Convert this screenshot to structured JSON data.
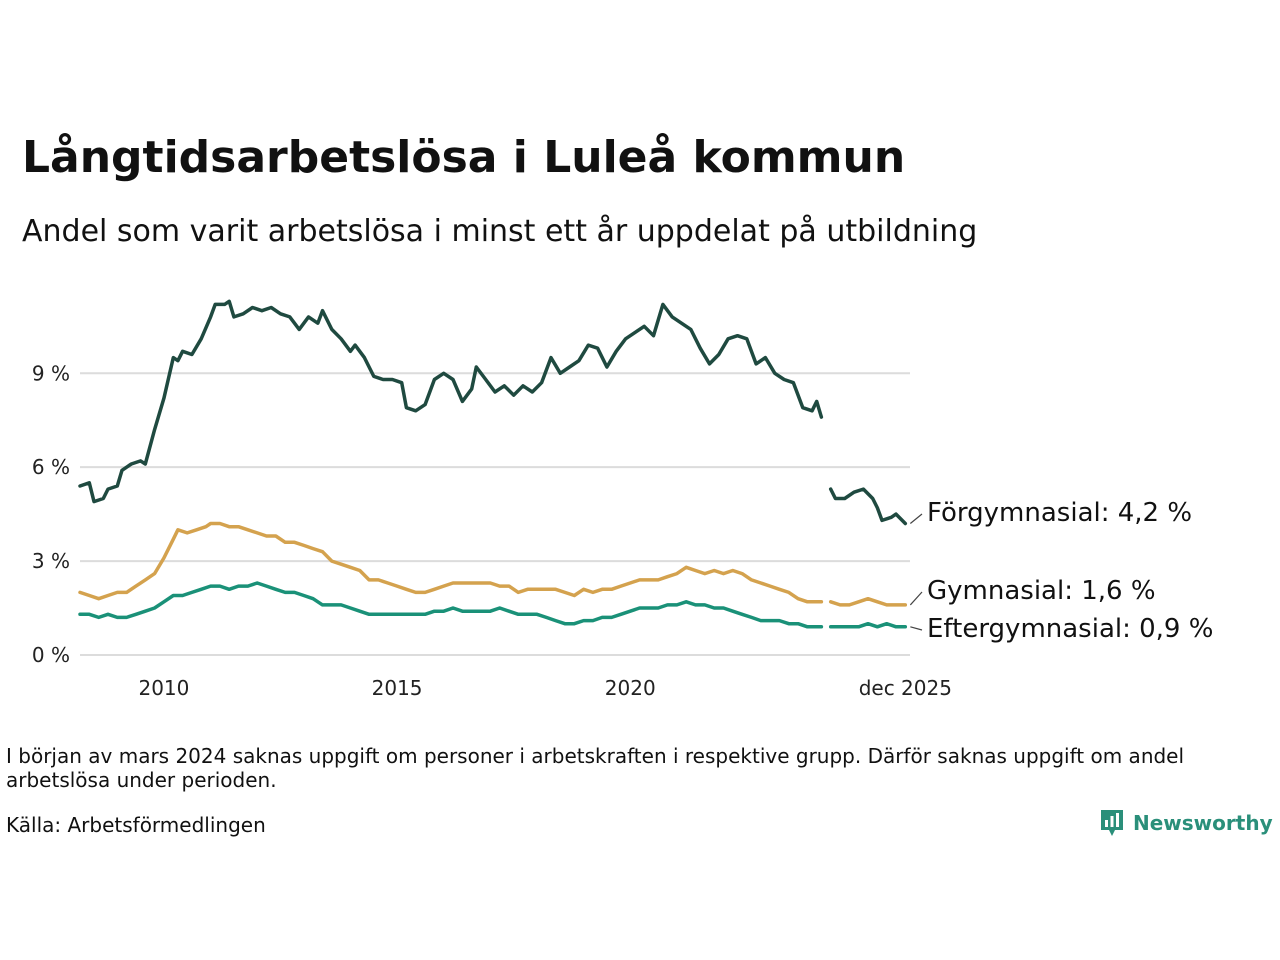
{
  "header": {
    "title": "Långtidsarbetslösa i Luleå kommun",
    "subtitle": "Andel som varit arbetslösa i minst ett år uppdelat på utbildning"
  },
  "footer": {
    "note": "I början av mars 2024 saknas uppgift om personer i arbetskraften i respektive grupp. Därför saknas uppgift om andel arbetslösa under perioden.",
    "source": "Källa: Arbetsförmedlingen",
    "brand": "Newsworthy"
  },
  "chart_data": {
    "type": "line",
    "title": "Långtidsarbetslösa i Luleå kommun",
    "subtitle": "Andel som varit arbetslösa i minst ett år uppdelat på utbildning",
    "xlabel": "",
    "ylabel": "",
    "xlim": [
      2008.2,
      2026.0
    ],
    "ylim": [
      0,
      11.5
    ],
    "y_ticks": [
      {
        "value": 0,
        "label": "0 %"
      },
      {
        "value": 3,
        "label": "3 %"
      },
      {
        "value": 6,
        "label": "6 %"
      },
      {
        "value": 9,
        "label": "9 %"
      }
    ],
    "x_ticks": [
      {
        "value": 2010,
        "label": "2010"
      },
      {
        "value": 2015,
        "label": "2015"
      },
      {
        "value": 2020,
        "label": "2020"
      },
      {
        "value": 2025.9,
        "label": "dec 2025"
      }
    ],
    "grid": "horizontal",
    "gap": {
      "from": 2024.0,
      "to": 2024.3
    },
    "series": [
      {
        "name": "Förgymnasial",
        "label": "Förgymnasial: 4,2 %",
        "color": "#1f4a40",
        "points": [
          [
            2008.2,
            5.4
          ],
          [
            2008.4,
            5.5
          ],
          [
            2008.5,
            4.9
          ],
          [
            2008.7,
            5.0
          ],
          [
            2008.8,
            5.3
          ],
          [
            2009.0,
            5.4
          ],
          [
            2009.1,
            5.9
          ],
          [
            2009.3,
            6.1
          ],
          [
            2009.5,
            6.2
          ],
          [
            2009.6,
            6.1
          ],
          [
            2009.8,
            7.2
          ],
          [
            2010.0,
            8.2
          ],
          [
            2010.2,
            9.5
          ],
          [
            2010.3,
            9.4
          ],
          [
            2010.4,
            9.7
          ],
          [
            2010.6,
            9.6
          ],
          [
            2010.8,
            10.1
          ],
          [
            2011.0,
            10.8
          ],
          [
            2011.1,
            11.2
          ],
          [
            2011.3,
            11.2
          ],
          [
            2011.4,
            11.3
          ],
          [
            2011.5,
            10.8
          ],
          [
            2011.7,
            10.9
          ],
          [
            2011.9,
            11.1
          ],
          [
            2012.1,
            11.0
          ],
          [
            2012.3,
            11.1
          ],
          [
            2012.5,
            10.9
          ],
          [
            2012.7,
            10.8
          ],
          [
            2012.9,
            10.4
          ],
          [
            2013.1,
            10.8
          ],
          [
            2013.3,
            10.6
          ],
          [
            2013.4,
            11.0
          ],
          [
            2013.6,
            10.4
          ],
          [
            2013.8,
            10.1
          ],
          [
            2014.0,
            9.7
          ],
          [
            2014.1,
            9.9
          ],
          [
            2014.3,
            9.5
          ],
          [
            2014.5,
            8.9
          ],
          [
            2014.7,
            8.8
          ],
          [
            2014.9,
            8.8
          ],
          [
            2015.1,
            8.7
          ],
          [
            2015.2,
            7.9
          ],
          [
            2015.4,
            7.8
          ],
          [
            2015.6,
            8.0
          ],
          [
            2015.8,
            8.8
          ],
          [
            2016.0,
            9.0
          ],
          [
            2016.2,
            8.8
          ],
          [
            2016.4,
            8.1
          ],
          [
            2016.6,
            8.5
          ],
          [
            2016.7,
            9.2
          ],
          [
            2016.9,
            8.8
          ],
          [
            2017.1,
            8.4
          ],
          [
            2017.3,
            8.6
          ],
          [
            2017.5,
            8.3
          ],
          [
            2017.7,
            8.6
          ],
          [
            2017.9,
            8.4
          ],
          [
            2018.1,
            8.7
          ],
          [
            2018.3,
            9.5
          ],
          [
            2018.5,
            9.0
          ],
          [
            2018.7,
            9.2
          ],
          [
            2018.9,
            9.4
          ],
          [
            2019.1,
            9.9
          ],
          [
            2019.3,
            9.8
          ],
          [
            2019.5,
            9.2
          ],
          [
            2019.7,
            9.7
          ],
          [
            2019.9,
            10.1
          ],
          [
            2020.1,
            10.3
          ],
          [
            2020.3,
            10.5
          ],
          [
            2020.5,
            10.2
          ],
          [
            2020.7,
            11.2
          ],
          [
            2020.9,
            10.8
          ],
          [
            2021.1,
            10.6
          ],
          [
            2021.3,
            10.4
          ],
          [
            2021.5,
            9.8
          ],
          [
            2021.7,
            9.3
          ],
          [
            2021.9,
            9.6
          ],
          [
            2022.1,
            10.1
          ],
          [
            2022.3,
            10.2
          ],
          [
            2022.5,
            10.1
          ],
          [
            2022.7,
            9.3
          ],
          [
            2022.9,
            9.5
          ],
          [
            2023.1,
            9.0
          ],
          [
            2023.3,
            8.8
          ],
          [
            2023.5,
            8.7
          ],
          [
            2023.7,
            7.9
          ],
          [
            2023.9,
            7.8
          ],
          [
            2024.0,
            8.1
          ],
          [
            2024.1,
            7.6
          ],
          null,
          [
            2024.3,
            5.3
          ],
          [
            2024.4,
            5.0
          ],
          [
            2024.6,
            5.0
          ],
          [
            2024.8,
            5.2
          ],
          [
            2025.0,
            5.3
          ],
          [
            2025.2,
            5.0
          ],
          [
            2025.3,
            4.7
          ],
          [
            2025.4,
            4.3
          ],
          [
            2025.6,
            4.4
          ],
          [
            2025.7,
            4.5
          ],
          [
            2025.9,
            4.2
          ]
        ]
      },
      {
        "name": "Gymnasial",
        "label": "Gymnasial: 1,6 %",
        "color": "#d4a24e",
        "points": [
          [
            2008.2,
            2.0
          ],
          [
            2008.4,
            1.9
          ],
          [
            2008.6,
            1.8
          ],
          [
            2008.8,
            1.9
          ],
          [
            2009.0,
            2.0
          ],
          [
            2009.2,
            2.0
          ],
          [
            2009.4,
            2.2
          ],
          [
            2009.6,
            2.4
          ],
          [
            2009.8,
            2.6
          ],
          [
            2010.0,
            3.1
          ],
          [
            2010.2,
            3.7
          ],
          [
            2010.3,
            4.0
          ],
          [
            2010.5,
            3.9
          ],
          [
            2010.7,
            4.0
          ],
          [
            2010.9,
            4.1
          ],
          [
            2011.0,
            4.2
          ],
          [
            2011.2,
            4.2
          ],
          [
            2011.4,
            4.1
          ],
          [
            2011.6,
            4.1
          ],
          [
            2011.8,
            4.0
          ],
          [
            2012.0,
            3.9
          ],
          [
            2012.2,
            3.8
          ],
          [
            2012.4,
            3.8
          ],
          [
            2012.6,
            3.6
          ],
          [
            2012.8,
            3.6
          ],
          [
            2013.0,
            3.5
          ],
          [
            2013.2,
            3.4
          ],
          [
            2013.4,
            3.3
          ],
          [
            2013.6,
            3.0
          ],
          [
            2013.8,
            2.9
          ],
          [
            2014.0,
            2.8
          ],
          [
            2014.2,
            2.7
          ],
          [
            2014.4,
            2.4
          ],
          [
            2014.6,
            2.4
          ],
          [
            2014.8,
            2.3
          ],
          [
            2015.0,
            2.2
          ],
          [
            2015.2,
            2.1
          ],
          [
            2015.4,
            2.0
          ],
          [
            2015.6,
            2.0
          ],
          [
            2015.8,
            2.1
          ],
          [
            2016.0,
            2.2
          ],
          [
            2016.2,
            2.3
          ],
          [
            2016.4,
            2.3
          ],
          [
            2016.6,
            2.3
          ],
          [
            2016.8,
            2.3
          ],
          [
            2017.0,
            2.3
          ],
          [
            2017.2,
            2.2
          ],
          [
            2017.4,
            2.2
          ],
          [
            2017.6,
            2.0
          ],
          [
            2017.8,
            2.1
          ],
          [
            2018.0,
            2.1
          ],
          [
            2018.2,
            2.1
          ],
          [
            2018.4,
            2.1
          ],
          [
            2018.6,
            2.0
          ],
          [
            2018.8,
            1.9
          ],
          [
            2019.0,
            2.1
          ],
          [
            2019.2,
            2.0
          ],
          [
            2019.4,
            2.1
          ],
          [
            2019.6,
            2.1
          ],
          [
            2019.8,
            2.2
          ],
          [
            2020.0,
            2.3
          ],
          [
            2020.2,
            2.4
          ],
          [
            2020.4,
            2.4
          ],
          [
            2020.6,
            2.4
          ],
          [
            2020.8,
            2.5
          ],
          [
            2021.0,
            2.6
          ],
          [
            2021.2,
            2.8
          ],
          [
            2021.4,
            2.7
          ],
          [
            2021.6,
            2.6
          ],
          [
            2021.8,
            2.7
          ],
          [
            2022.0,
            2.6
          ],
          [
            2022.2,
            2.7
          ],
          [
            2022.4,
            2.6
          ],
          [
            2022.6,
            2.4
          ],
          [
            2022.8,
            2.3
          ],
          [
            2023.0,
            2.2
          ],
          [
            2023.2,
            2.1
          ],
          [
            2023.4,
            2.0
          ],
          [
            2023.6,
            1.8
          ],
          [
            2023.8,
            1.7
          ],
          [
            2024.0,
            1.7
          ],
          [
            2024.1,
            1.7
          ],
          null,
          [
            2024.3,
            1.7
          ],
          [
            2024.5,
            1.6
          ],
          [
            2024.7,
            1.6
          ],
          [
            2024.9,
            1.7
          ],
          [
            2025.1,
            1.8
          ],
          [
            2025.3,
            1.7
          ],
          [
            2025.5,
            1.6
          ],
          [
            2025.7,
            1.6
          ],
          [
            2025.9,
            1.6
          ]
        ]
      },
      {
        "name": "Eftergymnasial",
        "label": "Eftergymnasial: 0,9 %",
        "color": "#1a9178",
        "points": [
          [
            2008.2,
            1.3
          ],
          [
            2008.4,
            1.3
          ],
          [
            2008.6,
            1.2
          ],
          [
            2008.8,
            1.3
          ],
          [
            2009.0,
            1.2
          ],
          [
            2009.2,
            1.2
          ],
          [
            2009.4,
            1.3
          ],
          [
            2009.6,
            1.4
          ],
          [
            2009.8,
            1.5
          ],
          [
            2010.0,
            1.7
          ],
          [
            2010.2,
            1.9
          ],
          [
            2010.4,
            1.9
          ],
          [
            2010.6,
            2.0
          ],
          [
            2010.8,
            2.1
          ],
          [
            2011.0,
            2.2
          ],
          [
            2011.2,
            2.2
          ],
          [
            2011.4,
            2.1
          ],
          [
            2011.6,
            2.2
          ],
          [
            2011.8,
            2.2
          ],
          [
            2012.0,
            2.3
          ],
          [
            2012.2,
            2.2
          ],
          [
            2012.4,
            2.1
          ],
          [
            2012.6,
            2.0
          ],
          [
            2012.8,
            2.0
          ],
          [
            2013.0,
            1.9
          ],
          [
            2013.2,
            1.8
          ],
          [
            2013.4,
            1.6
          ],
          [
            2013.6,
            1.6
          ],
          [
            2013.8,
            1.6
          ],
          [
            2014.0,
            1.5
          ],
          [
            2014.2,
            1.4
          ],
          [
            2014.4,
            1.3
          ],
          [
            2014.6,
            1.3
          ],
          [
            2014.8,
            1.3
          ],
          [
            2015.0,
            1.3
          ],
          [
            2015.2,
            1.3
          ],
          [
            2015.4,
            1.3
          ],
          [
            2015.6,
            1.3
          ],
          [
            2015.8,
            1.4
          ],
          [
            2016.0,
            1.4
          ],
          [
            2016.2,
            1.5
          ],
          [
            2016.4,
            1.4
          ],
          [
            2016.6,
            1.4
          ],
          [
            2016.8,
            1.4
          ],
          [
            2017.0,
            1.4
          ],
          [
            2017.2,
            1.5
          ],
          [
            2017.4,
            1.4
          ],
          [
            2017.6,
            1.3
          ],
          [
            2017.8,
            1.3
          ],
          [
            2018.0,
            1.3
          ],
          [
            2018.2,
            1.2
          ],
          [
            2018.4,
            1.1
          ],
          [
            2018.6,
            1.0
          ],
          [
            2018.8,
            1.0
          ],
          [
            2019.0,
            1.1
          ],
          [
            2019.2,
            1.1
          ],
          [
            2019.4,
            1.2
          ],
          [
            2019.6,
            1.2
          ],
          [
            2019.8,
            1.3
          ],
          [
            2020.0,
            1.4
          ],
          [
            2020.2,
            1.5
          ],
          [
            2020.4,
            1.5
          ],
          [
            2020.6,
            1.5
          ],
          [
            2020.8,
            1.6
          ],
          [
            2021.0,
            1.6
          ],
          [
            2021.2,
            1.7
          ],
          [
            2021.4,
            1.6
          ],
          [
            2021.6,
            1.6
          ],
          [
            2021.8,
            1.5
          ],
          [
            2022.0,
            1.5
          ],
          [
            2022.2,
            1.4
          ],
          [
            2022.4,
            1.3
          ],
          [
            2022.6,
            1.2
          ],
          [
            2022.8,
            1.1
          ],
          [
            2023.0,
            1.1
          ],
          [
            2023.2,
            1.1
          ],
          [
            2023.4,
            1.0
          ],
          [
            2023.6,
            1.0
          ],
          [
            2023.8,
            0.9
          ],
          [
            2024.0,
            0.9
          ],
          [
            2024.1,
            0.9
          ],
          null,
          [
            2024.3,
            0.9
          ],
          [
            2024.5,
            0.9
          ],
          [
            2024.7,
            0.9
          ],
          [
            2024.9,
            0.9
          ],
          [
            2025.1,
            1.0
          ],
          [
            2025.3,
            0.9
          ],
          [
            2025.5,
            1.0
          ],
          [
            2025.7,
            0.9
          ],
          [
            2025.9,
            0.9
          ]
        ]
      }
    ]
  }
}
